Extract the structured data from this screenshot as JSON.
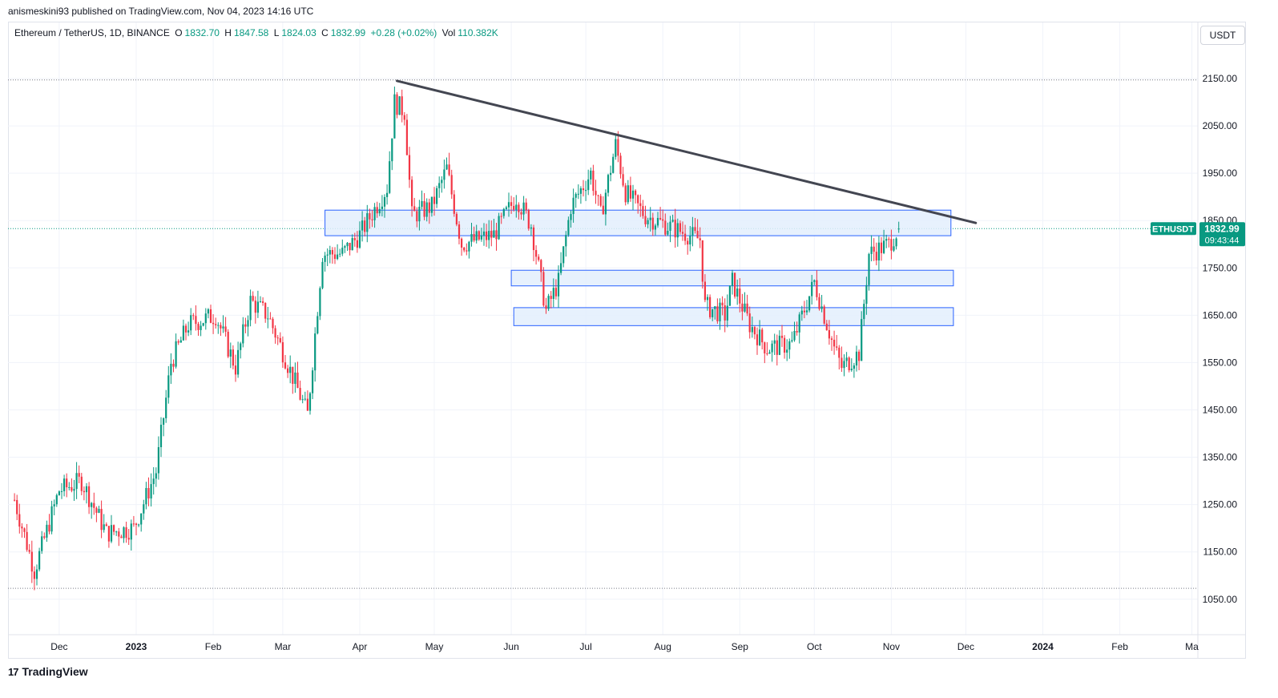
{
  "header": {
    "published": "anismeskini93 published on TradingView.com, Nov 04, 2023 14:16 UTC"
  },
  "legend": {
    "symbol": "Ethereum / TetherUS, 1D, BINANCE",
    "o_label": "O",
    "o_value": "1832.70",
    "h_label": "H",
    "h_value": "1847.58",
    "l_label": "L",
    "l_value": "1824.03",
    "c_label": "C",
    "c_value": "1832.99",
    "change": "+0.28 (+0.02%)",
    "vol_label": "Vol",
    "vol_value": "110.382K"
  },
  "currency": "USDT",
  "price_tag": {
    "symbol": "ETHUSDT",
    "price": "1832.99",
    "countdown": "09:43:44"
  },
  "footer": {
    "brand": "TradingView",
    "logo_mark": "17"
  },
  "colors": {
    "up": "#089981",
    "down": "#f23645",
    "trendline": "#434651",
    "zone_fill": "#e3effd",
    "zone_stroke": "#2962ff",
    "grid": "#f0f3fa",
    "price_tag": "#089981"
  },
  "chart_data": {
    "type": "candlestick",
    "interval": "1D",
    "y_ticks": [
      "1050.00",
      "1150.00",
      "1250.00",
      "1350.00",
      "1450.00",
      "1550.00",
      "1650.00",
      "1750.00",
      "1850.00",
      "1950.00",
      "2050.00",
      "2150.00"
    ],
    "x_ticks": [
      "Dec",
      "2023",
      "Feb",
      "Mar",
      "Apr",
      "May",
      "Jun",
      "Jul",
      "Aug",
      "Sep",
      "Oct",
      "Nov",
      "Dec",
      "2024",
      "Feb",
      "Ma"
    ],
    "ylim": [
      1000,
      2200
    ],
    "last_price": 1832.99,
    "ref_lines": [
      2147,
      1073
    ],
    "trendline": [
      {
        "x": "2023-04-16",
        "y": 2145
      },
      {
        "x": "2023-12-05",
        "y": 1845
      }
    ],
    "zones": [
      {
        "x_from": "2023-03-18",
        "x_to": "2023-11-25",
        "y_top": 1872,
        "y_bottom": 1818
      },
      {
        "x_from": "2023-06-01",
        "x_to": "2023-11-26",
        "y_top": 1745,
        "y_bottom": 1712
      },
      {
        "x_from": "2023-06-02",
        "x_to": "2023-11-26",
        "y_top": 1666,
        "y_bottom": 1628
      }
    ],
    "anchors": [
      {
        "date": "2022-11-13",
        "close": 1260
      },
      {
        "date": "2022-11-21",
        "close": 1110
      },
      {
        "date": "2022-12-01",
        "close": 1280
      },
      {
        "date": "2022-12-10",
        "close": 1300
      },
      {
        "date": "2022-12-20",
        "close": 1190
      },
      {
        "date": "2022-12-31",
        "close": 1200
      },
      {
        "date": "2023-01-09",
        "close": 1320
      },
      {
        "date": "2023-01-15",
        "close": 1550
      },
      {
        "date": "2023-01-22",
        "close": 1630
      },
      {
        "date": "2023-02-02",
        "close": 1650
      },
      {
        "date": "2023-02-10",
        "close": 1540
      },
      {
        "date": "2023-02-16",
        "close": 1680
      },
      {
        "date": "2023-02-23",
        "close": 1650
      },
      {
        "date": "2023-03-02",
        "close": 1560
      },
      {
        "date": "2023-03-11",
        "close": 1440
      },
      {
        "date": "2023-03-17",
        "close": 1780
      },
      {
        "date": "2023-03-25",
        "close": 1780
      },
      {
        "date": "2023-04-01",
        "close": 1820
      },
      {
        "date": "2023-04-12",
        "close": 1920
      },
      {
        "date": "2023-04-15",
        "close": 2100
      },
      {
        "date": "2023-04-19",
        "close": 2080
      },
      {
        "date": "2023-04-22",
        "close": 1860
      },
      {
        "date": "2023-04-30",
        "close": 1880
      },
      {
        "date": "2023-05-06",
        "close": 1960
      },
      {
        "date": "2023-05-12",
        "close": 1800
      },
      {
        "date": "2023-05-25",
        "close": 1820
      },
      {
        "date": "2023-06-03",
        "close": 1900
      },
      {
        "date": "2023-06-09",
        "close": 1840
      },
      {
        "date": "2023-06-15",
        "close": 1660
      },
      {
        "date": "2023-06-20",
        "close": 1720
      },
      {
        "date": "2023-06-25",
        "close": 1880
      },
      {
        "date": "2023-07-03",
        "close": 1950
      },
      {
        "date": "2023-07-07",
        "close": 1860
      },
      {
        "date": "2023-07-13",
        "close": 2010
      },
      {
        "date": "2023-07-17",
        "close": 1910
      },
      {
        "date": "2023-07-25",
        "close": 1860
      },
      {
        "date": "2023-08-07",
        "close": 1830
      },
      {
        "date": "2023-08-16",
        "close": 1810
      },
      {
        "date": "2023-08-18",
        "close": 1670
      },
      {
        "date": "2023-08-26",
        "close": 1650
      },
      {
        "date": "2023-08-29",
        "close": 1720
      },
      {
        "date": "2023-09-05",
        "close": 1630
      },
      {
        "date": "2023-09-12",
        "close": 1580
      },
      {
        "date": "2023-09-22",
        "close": 1590
      },
      {
        "date": "2023-10-01",
        "close": 1720
      },
      {
        "date": "2023-10-09",
        "close": 1580
      },
      {
        "date": "2023-10-12",
        "close": 1540
      },
      {
        "date": "2023-10-19",
        "close": 1570
      },
      {
        "date": "2023-10-23",
        "close": 1780
      },
      {
        "date": "2023-10-31",
        "close": 1800
      },
      {
        "date": "2023-11-04",
        "close": 1833
      }
    ]
  }
}
